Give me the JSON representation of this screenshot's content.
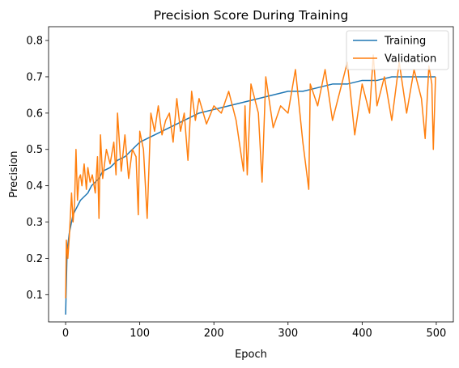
{
  "chart_data": {
    "type": "line",
    "title": "Precision Score During Training",
    "xlabel": "Epoch",
    "ylabel": "Precision",
    "xlim": [
      -23,
      523
    ],
    "ylim": [
      0.025,
      0.838
    ],
    "xticks": [
      0,
      100,
      200,
      300,
      400,
      500
    ],
    "yticks": [
      0.1,
      0.2,
      0.3,
      0.4,
      0.5,
      0.6,
      0.7,
      0.8
    ],
    "grid": false,
    "legend": {
      "position": "top-right"
    },
    "colors": {
      "Training": "#1f77b4",
      "Validation": "#ff7f0e"
    },
    "series": [
      {
        "name": "Training",
        "x": [
          0,
          2,
          5,
          10,
          15,
          20,
          25,
          30,
          35,
          40,
          45,
          50,
          60,
          70,
          80,
          90,
          100,
          120,
          140,
          160,
          180,
          200,
          220,
          240,
          260,
          280,
          300,
          320,
          340,
          360,
          380,
          400,
          420,
          440,
          460,
          480,
          499
        ],
        "values": [
          0.045,
          0.22,
          0.27,
          0.32,
          0.34,
          0.36,
          0.37,
          0.38,
          0.4,
          0.41,
          0.42,
          0.44,
          0.45,
          0.47,
          0.48,
          0.5,
          0.52,
          0.54,
          0.56,
          0.58,
          0.6,
          0.61,
          0.62,
          0.63,
          0.64,
          0.65,
          0.66,
          0.66,
          0.67,
          0.68,
          0.68,
          0.69,
          0.69,
          0.7,
          0.7,
          0.7,
          0.7
        ]
      },
      {
        "name": "Validation",
        "x": [
          0,
          1,
          3,
          5,
          8,
          10,
          12,
          14,
          16,
          18,
          20,
          22,
          25,
          28,
          30,
          33,
          36,
          40,
          43,
          45,
          47,
          50,
          55,
          60,
          65,
          68,
          70,
          75,
          80,
          85,
          90,
          95,
          98,
          100,
          105,
          110,
          115,
          120,
          125,
          130,
          135,
          140,
          145,
          150,
          155,
          160,
          165,
          170,
          175,
          180,
          190,
          200,
          210,
          220,
          230,
          240,
          242,
          245,
          250,
          260,
          265,
          270,
          280,
          290,
          300,
          310,
          320,
          328,
          330,
          340,
          350,
          360,
          370,
          380,
          390,
          400,
          410,
          415,
          420,
          430,
          440,
          450,
          460,
          470,
          480,
          485,
          490,
          494,
          496,
          499
        ],
        "values": [
          0.09,
          0.25,
          0.2,
          0.26,
          0.38,
          0.3,
          0.35,
          0.5,
          0.36,
          0.42,
          0.43,
          0.4,
          0.46,
          0.39,
          0.45,
          0.41,
          0.43,
          0.38,
          0.48,
          0.31,
          0.54,
          0.42,
          0.5,
          0.46,
          0.52,
          0.43,
          0.6,
          0.44,
          0.54,
          0.42,
          0.5,
          0.48,
          0.32,
          0.55,
          0.5,
          0.31,
          0.6,
          0.55,
          0.62,
          0.54,
          0.58,
          0.6,
          0.52,
          0.64,
          0.55,
          0.6,
          0.47,
          0.66,
          0.58,
          0.64,
          0.57,
          0.62,
          0.6,
          0.66,
          0.58,
          0.44,
          0.62,
          0.43,
          0.68,
          0.6,
          0.41,
          0.7,
          0.56,
          0.62,
          0.6,
          0.72,
          0.52,
          0.39,
          0.68,
          0.62,
          0.72,
          0.58,
          0.66,
          0.74,
          0.54,
          0.68,
          0.6,
          0.76,
          0.62,
          0.7,
          0.58,
          0.74,
          0.6,
          0.72,
          0.64,
          0.53,
          0.73,
          0.68,
          0.5,
          0.7
        ]
      }
    ]
  }
}
